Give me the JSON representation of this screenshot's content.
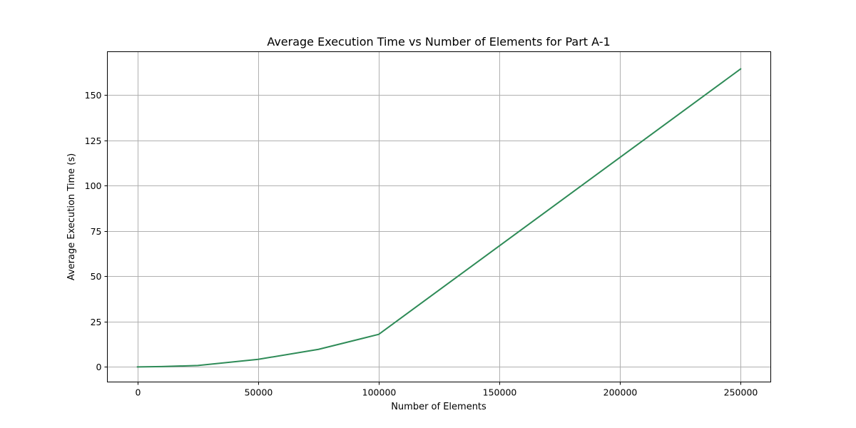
{
  "chart_data": {
    "type": "line",
    "title": "Average Execution Time vs Number of Elements for Part A-1",
    "xlabel": "Number of Elements",
    "ylabel": "Average Execution Time (s)",
    "xlim": [
      -12500,
      262500
    ],
    "ylim": [
      -8.3,
      174
    ],
    "xticks": [
      0,
      50000,
      100000,
      150000,
      200000,
      250000
    ],
    "xtick_labels": [
      "0",
      "50000",
      "100000",
      "150000",
      "200000",
      "250000"
    ],
    "yticks": [
      0,
      25,
      50,
      75,
      100,
      125,
      150
    ],
    "ytick_labels": [
      "0",
      "25",
      "50",
      "75",
      "100",
      "125",
      "150"
    ],
    "grid": true,
    "series": [
      {
        "color": "#2e8b57",
        "x": [
          0,
          10000,
          25000,
          50000,
          75000,
          100000,
          250000
        ],
        "y": [
          0,
          0.2,
          0.8,
          4.2,
          9.7,
          18.0,
          164.5
        ]
      }
    ]
  }
}
